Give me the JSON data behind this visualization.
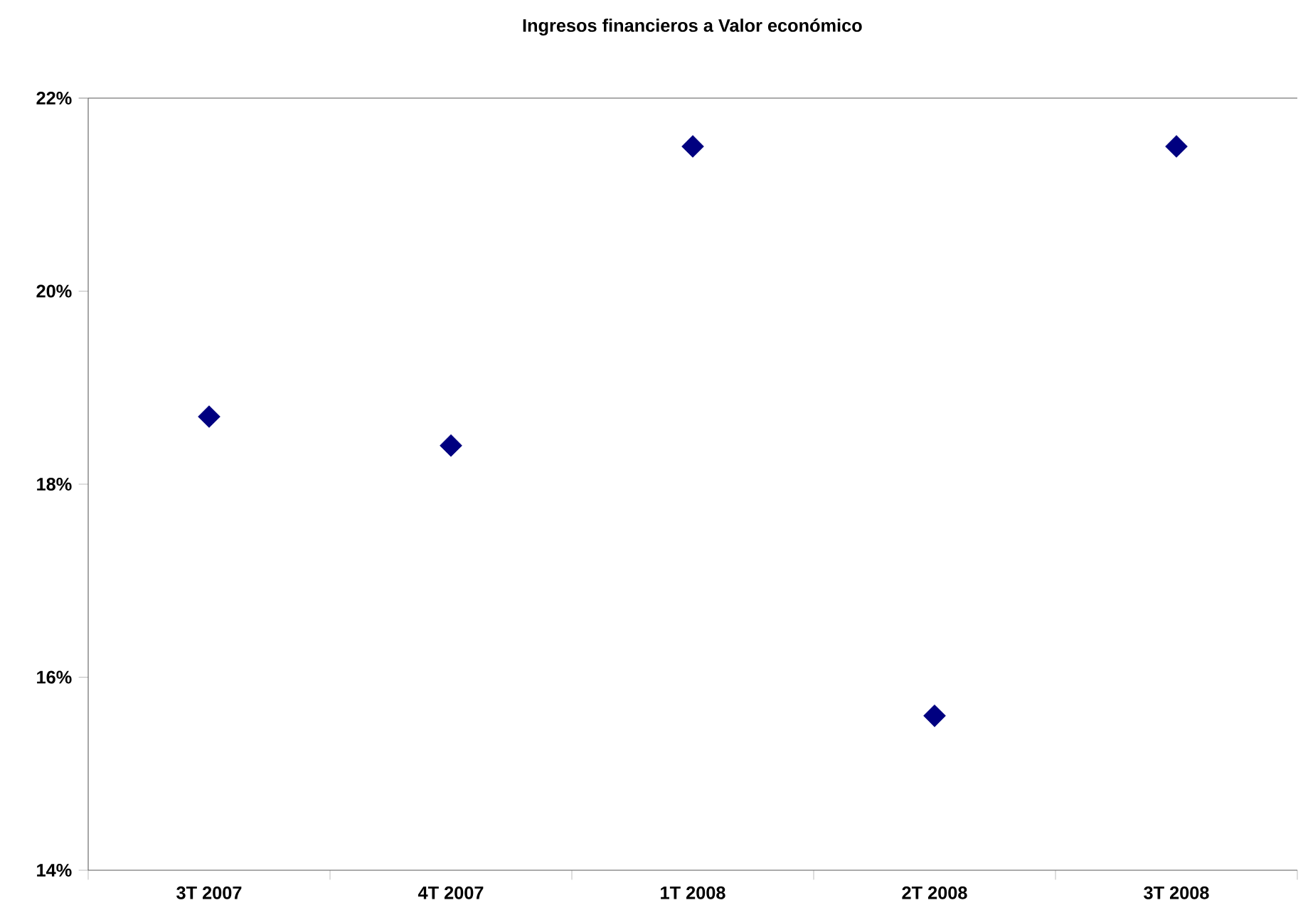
{
  "chart_data": {
    "type": "scatter",
    "title": "Ingresos financieros a Valor económico",
    "categories": [
      "3T 2007",
      "4T 2007",
      "1T 2008",
      "2T 2008",
      "3T 2008"
    ],
    "series": [
      {
        "color": "#000080",
        "values": [
          18.7,
          18.4,
          21.5,
          15.6,
          21.5
        ]
      }
    ],
    "ylim": [
      14,
      22
    ],
    "yticks": [
      {
        "value": 14,
        "label": "14%"
      },
      {
        "value": 16,
        "label": "16%"
      },
      {
        "value": 18,
        "label": "18%"
      },
      {
        "value": 20,
        "label": "20%"
      },
      {
        "value": 22,
        "label": "22%"
      }
    ],
    "marker": "diamond"
  }
}
